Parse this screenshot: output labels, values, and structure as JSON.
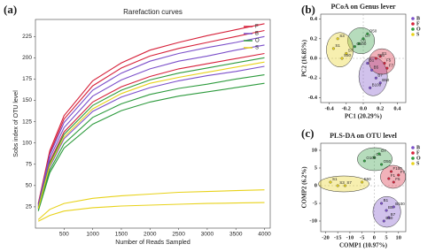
{
  "chart_data": [
    {
      "type": "line",
      "panel_label": "(a)",
      "title": "Rarefaction curves",
      "xlabel": "Number of Reads Sampled",
      "ylabel": "Sobs index of OTU level",
      "xlim": [
        0,
        4100
      ],
      "ylim": [
        0,
        245
      ],
      "xticks": [
        500,
        1000,
        1500,
        2000,
        2500,
        3000,
        3500,
        4000
      ],
      "yticks": [
        25,
        50,
        75,
        100,
        125,
        150,
        175,
        200,
        225
      ],
      "x": [
        50,
        250,
        500,
        1000,
        1500,
        2000,
        2500,
        3000,
        3500,
        4000
      ],
      "series": [
        {
          "name": "F",
          "color": "#d6213a",
          "values": [
            [
              29,
              91,
              132,
              173,
              194,
              209,
              218,
              226,
              233,
              240
            ],
            [
              28,
              88,
              128,
              167,
              188,
              202,
              211,
              218,
              225,
              232
            ],
            [
              25,
              78,
              113,
              148,
              166,
              178,
              187,
              193,
              199,
              205
            ]
          ]
        },
        {
          "name": "B",
          "color": "#7b4fc9",
          "values": [
            [
              27,
              86,
              124,
              162,
              182,
              196,
              205,
              212,
              218,
              225
            ],
            [
              26,
              82,
              118,
              155,
              174,
              187,
              196,
              202,
              209,
              215
            ],
            [
              23,
              72,
              105,
              137,
              154,
              165,
              173,
              179,
              184,
              190
            ]
          ]
        },
        {
          "name": "O",
          "color": "#2e9b3e",
          "values": [
            [
              24,
              76,
              110,
              144,
              162,
              174,
              182,
              188,
              194,
              200
            ],
            [
              22,
              68,
              99,
              130,
              146,
              157,
              164,
              169,
              175,
              180
            ],
            [
              20,
              65,
              94,
              122,
              138,
              148,
              155,
              160,
              165,
              170
            ]
          ]
        },
        {
          "name": "S",
          "color": "#e8d21a",
          "values": [
            [
              23,
              74,
              107,
              140,
              158,
              170,
              177,
              183,
              189,
              195
            ],
            [
              10,
              22,
              29,
              35,
              38,
              40,
              42,
              43,
              44,
              45
            ],
            [
              8,
              15,
              20,
              24,
              26,
              27,
              28,
              29,
              29.5,
              30
            ]
          ]
        }
      ]
    },
    {
      "type": "scatter",
      "panel_label": "(b)",
      "title": "PCoA on Genus lever",
      "xlabel": "PC1 (20.29%)",
      "ylabel": "PC2 (16.85%)",
      "xlim": [
        -0.5,
        0.5
      ],
      "ylim": [
        -0.45,
        0.45
      ],
      "xticks": [
        -0.4,
        -0.2,
        {
          "value": 0,
          "label": "0.0"
        },
        0.2,
        0.4
      ],
      "yticks": [
        -0.4,
        -0.2,
        {
          "value": 0,
          "label": "0.0"
        },
        0.2,
        0.4
      ],
      "series": [
        {
          "name": "B",
          "color": "#7b4fc9",
          "x": [
            0.05,
            0.1,
            0.15,
            0.2,
            0.08
          ],
          "y": [
            -0.05,
            -0.12,
            -0.2,
            -0.25,
            -0.3
          ],
          "labels": [
            "B1",
            "B5",
            "B7",
            "B50",
            "B100"
          ]
        },
        {
          "name": "F",
          "color": "#d6213a",
          "x": [
            0.2,
            0.25,
            0.28,
            0.15
          ],
          "y": [
            0.02,
            -0.05,
            -0.1,
            0.0
          ],
          "labels": [
            "F1",
            "F5",
            "F7",
            "F50"
          ]
        },
        {
          "name": "O",
          "color": "#2e9b3e",
          "x": [
            -0.05,
            0.0,
            0.05,
            -0.1
          ],
          "y": [
            0.15,
            0.2,
            0.25,
            0.12
          ],
          "labels": [
            "O1",
            "O7",
            "O50",
            "O100"
          ]
        },
        {
          "name": "S",
          "color": "#e8d21a",
          "x": [
            -0.35,
            -0.3,
            -0.2,
            -0.25
          ],
          "y": [
            0.1,
            0.2,
            0.05,
            0.0
          ],
          "labels": [
            "S1",
            "S3",
            "S7",
            "S50"
          ]
        }
      ]
    },
    {
      "type": "scatter",
      "panel_label": "(c)",
      "title": "PLS-DA on OTU level",
      "xlabel": "COMP1 (10.97%)",
      "ylabel": "COMP2 (6.2%)",
      "xlim": [
        -22,
        13
      ],
      "ylim": [
        -13,
        12
      ],
      "xticks": [
        -20,
        -15,
        -10,
        -5,
        0,
        5,
        10
      ],
      "yticks": [
        -10,
        -5,
        0,
        5,
        10
      ],
      "series": [
        {
          "name": "B",
          "color": "#7b4fc9",
          "x": [
            3,
            5,
            6,
            4,
            8
          ],
          "y": [
            -5,
            -7,
            -9,
            -10,
            -6
          ],
          "labels": [
            "B1",
            "B5",
            "B7",
            "B50",
            "B100"
          ]
        },
        {
          "name": "F",
          "color": "#d6213a",
          "x": [
            6,
            8,
            10,
            7
          ],
          "y": [
            2,
            1,
            3,
            4
          ],
          "labels": [
            "F1",
            "F5",
            "F7",
            "F100"
          ]
        },
        {
          "name": "O",
          "color": "#2e9b3e",
          "x": [
            0,
            2,
            -4,
            3
          ],
          "y": [
            8,
            9,
            7,
            6
          ],
          "labels": [
            "O1",
            "O7",
            "O100",
            "O50"
          ]
        },
        {
          "name": "S",
          "color": "#e8d21a",
          "x": [
            -18,
            -15,
            -12,
            -5
          ],
          "y": [
            1,
            0,
            0,
            1
          ],
          "labels": [
            "S1",
            "S3",
            "S7",
            "S50"
          ]
        }
      ]
    }
  ]
}
